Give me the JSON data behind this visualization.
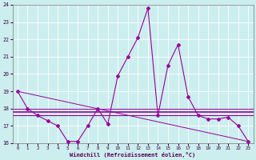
{
  "xlabel": "Windchill (Refroidissement éolien,°C)",
  "background_color": "#cceeee",
  "grid_color": "#aadddd",
  "line_color": "#990099",
  "ylim": [
    16,
    24
  ],
  "xlim": [
    -0.5,
    23.5
  ],
  "yticks": [
    16,
    17,
    18,
    19,
    20,
    21,
    22,
    23,
    24
  ],
  "xticks": [
    0,
    1,
    2,
    3,
    4,
    5,
    6,
    7,
    8,
    9,
    10,
    11,
    12,
    13,
    14,
    15,
    16,
    17,
    18,
    19,
    20,
    21,
    22,
    23
  ],
  "series1_x": [
    0,
    1,
    2,
    3,
    4,
    5,
    6,
    7,
    8,
    9,
    10,
    11,
    12,
    13,
    14,
    15,
    16,
    17,
    18,
    19,
    20,
    21,
    22,
    23
  ],
  "series1_y": [
    19.0,
    18.0,
    17.6,
    17.3,
    17.0,
    16.1,
    16.1,
    17.0,
    18.0,
    17.1,
    19.9,
    21.0,
    22.1,
    23.8,
    17.6,
    20.5,
    21.7,
    18.7,
    17.6,
    17.4,
    17.4,
    17.5,
    17.0,
    16.1
  ],
  "series2_x": [
    0,
    23
  ],
  "series2_y": [
    19.0,
    16.1
  ],
  "hline1_y": 17.6,
  "hline2_y": 17.8,
  "hline3_y": 18.0
}
